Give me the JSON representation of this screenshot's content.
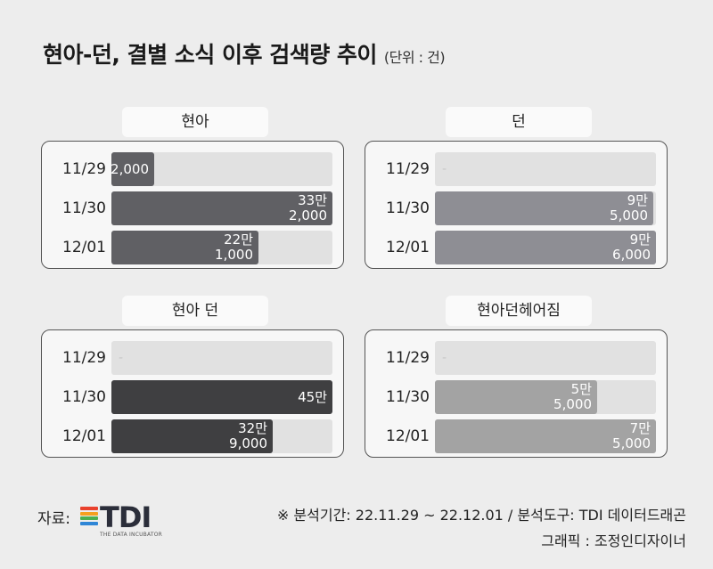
{
  "title": "현아-던, 결별 소식 이후 검색량 추이",
  "unit": "(단위 : 건)",
  "chart_data": [
    {
      "type": "bar",
      "orientation": "horizontal",
      "panel": "현아",
      "color": "#606064",
      "categories": [
        "11/29",
        "11/30",
        "12/01"
      ],
      "values": [
        2000,
        332000,
        221000
      ],
      "labels": [
        [
          "2,000"
        ],
        [
          "33만",
          "2,000"
        ],
        [
          "22만",
          "1,000"
        ]
      ],
      "xlim": [
        0,
        332000
      ]
    },
    {
      "type": "bar",
      "orientation": "horizontal",
      "panel": "던",
      "color": "#8e8e94",
      "categories": [
        "11/29",
        "11/30",
        "12/01"
      ],
      "values": [
        0,
        95000,
        96000
      ],
      "labels": [
        [
          "-"
        ],
        [
          "9만",
          "5,000"
        ],
        [
          "9만",
          "6,000"
        ]
      ],
      "xlim": [
        0,
        96000
      ]
    },
    {
      "type": "bar",
      "orientation": "horizontal",
      "panel": "현아 던",
      "color": "#3f3f41",
      "categories": [
        "11/29",
        "11/30",
        "12/01"
      ],
      "values": [
        0,
        450000,
        329000
      ],
      "labels": [
        [
          "-"
        ],
        [
          "45만"
        ],
        [
          "32만",
          "9,000"
        ]
      ],
      "xlim": [
        0,
        450000
      ]
    },
    {
      "type": "bar",
      "orientation": "horizontal",
      "panel": "현아던헤어짐",
      "color": "#a3a3a3",
      "categories": [
        "11/29",
        "11/30",
        "12/01"
      ],
      "values": [
        0,
        55000,
        75000
      ],
      "labels": [
        [
          "-"
        ],
        [
          "5만",
          "5,000"
        ],
        [
          "7만",
          "5,000"
        ]
      ],
      "xlim": [
        0,
        75000
      ]
    }
  ],
  "footer": {
    "source_label": "자료:",
    "logo_text": "TDI",
    "logo_sub": "THE DATA INCUBATOR",
    "logo_colors": [
      "#e9412d",
      "#f5a01f",
      "#4caf4f",
      "#2f86d6"
    ],
    "note1": "※ 분석기간:  22.11.29 ~ 22.12.01 / 분석도구: TDI 데이터드래곤",
    "note2": "그래픽 : 조정인디자이너"
  }
}
